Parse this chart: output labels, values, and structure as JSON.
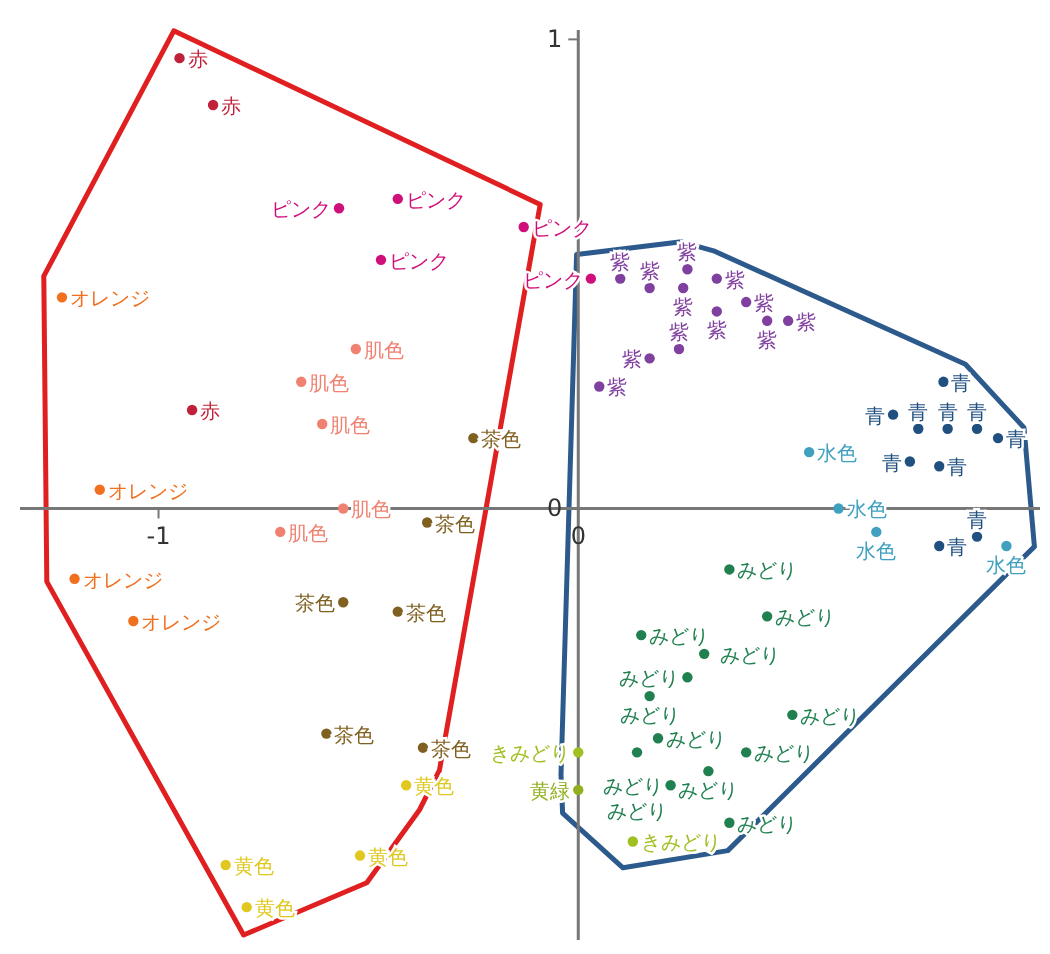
{
  "chart_data": {
    "type": "scatter",
    "xlim": [
      -1.33,
      1.1
    ],
    "ylim": [
      -0.92,
      1.02
    ],
    "xticks": [
      -1,
      0
    ],
    "yticks": [
      {
        "value": 0,
        "label": "0"
      },
      {
        "value": 1,
        "label": "1"
      }
    ],
    "grid": false,
    "marker": "circle",
    "series": [
      {
        "name": "赤",
        "color": "#c0203a",
        "x": [
          -0.95,
          -0.87,
          -0.92
        ],
        "values": [
          0.96,
          0.86,
          0.21
        ]
      },
      {
        "name": "ピンク",
        "color": "#d0107a",
        "x": [
          -0.57,
          -0.43,
          -0.47,
          -0.13,
          0.03
        ],
        "values": [
          0.64,
          0.66,
          0.53,
          0.6,
          0.49
        ]
      },
      {
        "name": "オレンジ",
        "color": "#f07020",
        "x": [
          -1.23,
          -1.14,
          -1.2,
          -1.06
        ],
        "values": [
          0.45,
          0.04,
          -0.15,
          -0.24
        ]
      },
      {
        "name": "肌色",
        "color": "#f08070",
        "x": [
          -0.53,
          -0.66,
          -0.61,
          -0.56,
          -0.71
        ],
        "values": [
          0.34,
          0.27,
          0.18,
          0.0,
          -0.05
        ]
      },
      {
        "name": "茶色",
        "color": "#806020",
        "x": [
          -0.25,
          -0.36,
          -0.56,
          -0.43,
          -0.37,
          -0.6
        ],
        "values": [
          0.15,
          -0.03,
          -0.2,
          -0.22,
          -0.51,
          -0.48
        ]
      },
      {
        "name": "黄色",
        "color": "#e0c820",
        "x": [
          -0.41,
          -0.84,
          -0.79,
          -0.52
        ],
        "values": [
          -0.59,
          -0.76,
          -0.85,
          -0.74
        ]
      },
      {
        "name": "紫",
        "color": "#8040a0",
        "x": [
          0.1,
          0.17,
          0.26,
          0.25,
          0.33,
          0.4,
          0.45,
          0.5,
          0.33,
          0.17,
          0.05,
          0.24
        ],
        "values": [
          0.49,
          0.47,
          0.51,
          0.47,
          0.49,
          0.44,
          0.4,
          0.4,
          0.42,
          0.32,
          0.26,
          0.34
        ]
      },
      {
        "name": "青",
        "color": "#205080",
        "x": [
          0.87,
          0.75,
          0.81,
          0.88,
          0.95,
          1.0,
          0.79,
          0.86,
          0.86,
          0.95
        ],
        "values": [
          0.27,
          0.2,
          0.17,
          0.17,
          0.17,
          0.15,
          0.1,
          0.09,
          -0.08,
          -0.06
        ]
      },
      {
        "name": "水色",
        "color": "#40a0c0",
        "x": [
          0.55,
          0.62,
          0.71,
          1.02
        ],
        "values": [
          0.12,
          0.0,
          -0.05,
          -0.08
        ]
      },
      {
        "name": "みどり",
        "color": "#208050",
        "x": [
          0.36,
          0.45,
          0.15,
          0.3,
          0.26,
          0.17,
          0.51,
          0.19,
          0.14,
          0.4,
          0.22,
          0.36,
          0.31
        ],
        "values": [
          -0.13,
          -0.23,
          -0.27,
          -0.31,
          -0.36,
          -0.4,
          -0.44,
          -0.49,
          -0.52,
          -0.52,
          -0.59,
          -0.67,
          -0.56
        ]
      },
      {
        "name": "きみどり",
        "color": "#a0c020",
        "x": [
          0.0,
          0.13
        ],
        "values": [
          -0.52,
          -0.71
        ]
      },
      {
        "name": "黄緑",
        "color": "#90b020",
        "x": [
          0.0
        ],
        "values": [
          -0.6
        ]
      }
    ]
  }
}
